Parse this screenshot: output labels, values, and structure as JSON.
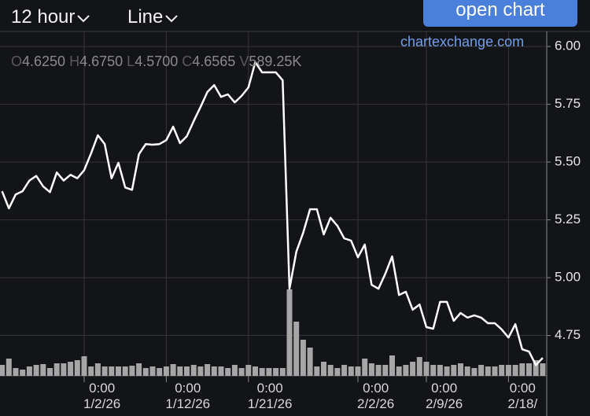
{
  "toolbar": {
    "interval": "12 hour",
    "chart_style": "Line",
    "open_chart": "open chart"
  },
  "watermark": "chartexchange.com",
  "ohlc": [
    {
      "key": "O",
      "value": "4.6250"
    },
    {
      "key": "H",
      "value": "4.6750"
    },
    {
      "key": "L",
      "value": "4.5700"
    },
    {
      "key": "C",
      "value": "4.6565"
    },
    {
      "key": "V",
      "value": "589.25K"
    }
  ],
  "chart_data": {
    "type": "line",
    "color": "#ffffff",
    "categories": [
      null,
      null,
      null,
      null,
      null,
      null,
      null,
      null,
      null,
      null,
      null,
      null,
      "0:00\n1/2/26",
      null,
      null,
      null,
      null,
      null,
      null,
      null,
      null,
      null,
      null,
      null,
      "0:00\n1/12/26",
      null,
      null,
      null,
      null,
      null,
      null,
      null,
      null,
      null,
      null,
      null,
      "0:00\n1/21/26",
      null,
      null,
      null,
      null,
      null,
      null,
      null,
      null,
      null,
      null,
      null,
      null,
      null,
      null,
      null,
      "0:00\n2/2/26",
      null,
      null,
      null,
      null,
      null,
      null,
      null,
      null,
      null,
      "0:00\n2/9/26",
      null,
      null,
      null,
      null,
      null,
      null,
      null,
      null,
      null,
      null,
      null,
      "0:00\n2/18/",
      null,
      null,
      null,
      null,
      null
    ],
    "values": [
      5.374,
      5.3,
      5.36,
      5.374,
      5.42,
      5.44,
      5.395,
      5.37,
      5.455,
      5.42,
      5.445,
      5.43,
      5.465,
      5.537,
      5.616,
      5.578,
      5.43,
      5.497,
      5.39,
      5.38,
      5.534,
      5.578,
      5.575,
      5.578,
      5.595,
      5.653,
      5.582,
      5.612,
      5.677,
      5.738,
      5.803,
      5.833,
      5.782,
      5.793,
      5.758,
      5.786,
      5.823,
      5.932,
      5.888,
      5.888,
      5.888,
      5.854,
      4.952,
      5.112,
      5.194,
      5.296,
      5.296,
      5.187,
      5.259,
      5.224,
      5.17,
      5.16,
      5.088,
      5.143,
      4.969,
      4.952,
      5.017,
      5.092,
      4.925,
      4.939,
      4.861,
      4.884,
      4.786,
      4.779,
      4.895,
      4.895,
      4.813,
      4.847,
      4.827,
      4.837,
      4.827,
      4.803,
      4.803,
      4.776,
      4.741,
      4.799,
      4.69,
      4.68,
      4.622,
      4.653
    ],
    "volume_values": [
      14,
      22,
      10,
      8,
      12,
      14,
      15,
      10,
      16,
      16,
      18,
      20,
      25,
      12,
      16,
      12,
      12,
      12,
      12,
      13,
      16,
      10,
      12,
      10,
      12,
      15,
      12,
      12,
      14,
      12,
      15,
      12,
      12,
      10,
      14,
      10,
      14,
      12,
      10,
      10,
      10,
      10,
      110,
      69,
      46,
      36,
      12,
      18,
      14,
      10,
      14,
      12,
      12,
      22,
      16,
      14,
      14,
      26,
      12,
      14,
      18,
      24,
      18,
      14,
      14,
      12,
      14,
      16,
      12,
      10,
      14,
      12,
      12,
      14,
      14,
      14,
      16,
      16,
      20,
      16
    ],
    "volume_color": "#a6a6a6",
    "volume_ylim": [
      0,
      150
    ],
    "ylim": [
      4.575,
      6.065
    ],
    "yticks": [
      {
        "value": 4.75,
        "label": "4.75"
      },
      {
        "value": 5,
        "label": "5.00"
      },
      {
        "value": 5.25,
        "label": "5.25"
      },
      {
        "value": 5.5,
        "label": "5.50"
      },
      {
        "value": 5.75,
        "label": "5.75"
      },
      {
        "value": 6,
        "label": "6.00"
      }
    ],
    "grid": true
  }
}
